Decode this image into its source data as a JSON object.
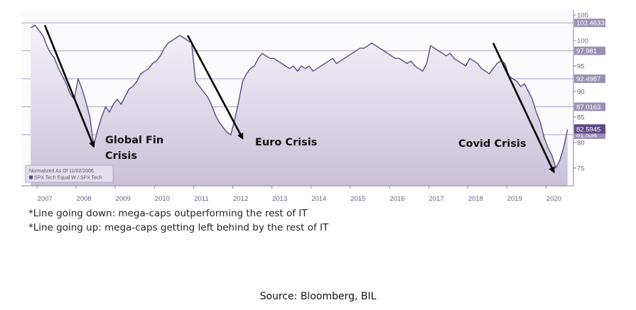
{
  "chart_data": {
    "type": "line",
    "series": [
      {
        "name": "SPX Tech Equal W / SPX Tech",
        "color": "#5b4a85",
        "x": [
          2006.84,
          2006.95,
          2007.05,
          2007.15,
          2007.25,
          2007.35,
          2007.45,
          2007.55,
          2007.65,
          2007.75,
          2007.85,
          2007.95,
          2008.05,
          2008.15,
          2008.25,
          2008.35,
          2008.45,
          2008.55,
          2008.65,
          2008.75,
          2008.85,
          2008.95,
          2009.05,
          2009.15,
          2009.25,
          2009.35,
          2009.45,
          2009.55,
          2009.65,
          2009.75,
          2009.85,
          2009.95,
          2010.05,
          2010.15,
          2010.25,
          2010.35,
          2010.45,
          2010.55,
          2010.65,
          2010.75,
          2010.85,
          2010.95,
          2011.05,
          2011.15,
          2011.25,
          2011.35,
          2011.45,
          2011.55,
          2011.65,
          2011.75,
          2011.85,
          2011.95,
          2012.05,
          2012.15,
          2012.25,
          2012.35,
          2012.45,
          2012.55,
          2012.65,
          2012.75,
          2012.85,
          2012.95,
          2013.05,
          2013.15,
          2013.25,
          2013.35,
          2013.45,
          2013.55,
          2013.65,
          2013.75,
          2013.85,
          2013.95,
          2014.05,
          2014.15,
          2014.25,
          2014.35,
          2014.45,
          2014.55,
          2014.65,
          2014.75,
          2014.85,
          2014.95,
          2015.05,
          2015.15,
          2015.25,
          2015.35,
          2015.45,
          2015.55,
          2015.65,
          2015.75,
          2015.85,
          2015.95,
          2016.05,
          2016.15,
          2016.25,
          2016.35,
          2016.45,
          2016.55,
          2016.65,
          2016.75,
          2016.85,
          2016.95,
          2017.05,
          2017.15,
          2017.25,
          2017.35,
          2017.45,
          2017.55,
          2017.65,
          2017.75,
          2017.85,
          2017.95,
          2018.05,
          2018.15,
          2018.25,
          2018.35,
          2018.45,
          2018.55,
          2018.65,
          2018.75,
          2018.85,
          2018.95,
          2019.05,
          2019.15,
          2019.25,
          2019.35,
          2019.45,
          2019.55,
          2019.65,
          2019.75,
          2019.85,
          2019.95,
          2020.05,
          2020.15,
          2020.25,
          2020.35,
          2020.45,
          2020.55
        ],
        "y": [
          102.5,
          103.0,
          102.0,
          101.0,
          99.0,
          97.5,
          96.5,
          94.5,
          93.0,
          91.5,
          89.5,
          88.5,
          92.5,
          90.5,
          88.0,
          85.0,
          79.5,
          82.5,
          85.0,
          87.0,
          86.0,
          87.5,
          88.5,
          87.5,
          89.0,
          90.5,
          91.0,
          92.0,
          93.5,
          94.0,
          94.5,
          95.5,
          96.0,
          97.0,
          98.5,
          99.5,
          100.0,
          100.5,
          101.0,
          100.5,
          100.0,
          99.5,
          92.0,
          91.0,
          90.0,
          89.0,
          87.5,
          85.5,
          84.0,
          83.0,
          82.0,
          81.5,
          84.5,
          88.0,
          92.0,
          93.5,
          94.5,
          95.0,
          96.5,
          97.5,
          97.0,
          96.5,
          96.5,
          96.0,
          95.5,
          95.0,
          94.5,
          95.0,
          94.0,
          95.0,
          94.5,
          95.0,
          94.0,
          94.5,
          95.0,
          95.5,
          96.0,
          96.5,
          95.5,
          96.0,
          96.5,
          97.0,
          97.5,
          98.0,
          98.5,
          98.5,
          99.0,
          99.5,
          99.0,
          98.5,
          98.0,
          97.5,
          97.0,
          96.5,
          96.5,
          96.0,
          95.5,
          96.0,
          95.0,
          94.5,
          94.0,
          95.5,
          99.0,
          98.5,
          98.0,
          97.5,
          97.0,
          97.5,
          96.5,
          96.0,
          95.5,
          95.0,
          96.5,
          96.0,
          95.5,
          94.5,
          94.0,
          93.5,
          94.5,
          95.5,
          96.0,
          95.5,
          93.0,
          92.5,
          92.0,
          91.0,
          91.5,
          90.0,
          88.5,
          86.0,
          84.0,
          81.0,
          79.0,
          77.5,
          75.0,
          76.5,
          79.0,
          82.6
        ]
      }
    ],
    "xlim": [
      2006.6,
      2020.7
    ],
    "ylim": [
      71.5,
      106
    ],
    "x_ticks": [
      2007,
      2008,
      2009,
      2010,
      2011,
      2012,
      2013,
      2014,
      2015,
      2016,
      2017,
      2018,
      2019,
      2020
    ],
    "x_tick_labels": [
      "2007",
      "2008",
      "2009",
      "2010",
      "2011",
      "2012",
      "2013",
      "2014",
      "2015",
      "2016",
      "2017",
      "2018",
      "2019",
      "2020"
    ],
    "y_ticks": [
      75,
      80,
      85,
      90,
      95,
      100,
      105
    ],
    "y_tick_labels": [
      "75",
      "80",
      "85",
      "90",
      "95",
      "100",
      "105"
    ],
    "reference_lines": [
      {
        "value": 103.4633,
        "label": "103.4633"
      },
      {
        "value": 97.981,
        "label": "97.981"
      },
      {
        "value": 92.4987,
        "label": "92.4987"
      },
      {
        "value": 87.0163,
        "label": "87.0163"
      },
      {
        "value": 81.534,
        "label": "81.534"
      }
    ],
    "last_value_label": "82.5945",
    "last_value": 82.5945,
    "legend": {
      "placement": "bottom-left",
      "title": "Normalized As Of 11/02/2006",
      "entry": "SPX Tech Equal W / SPX Tech"
    },
    "annotations": [
      {
        "text": "Global Fin Crisis",
        "lines": [
          "Global Fin",
          "Crisis"
        ],
        "arrow_from": [
          2007.2,
          103.0
        ],
        "arrow_to": [
          2008.45,
          79.2
        ]
      },
      {
        "text": "Euro Crisis",
        "lines": [
          "Euro Crisis"
        ],
        "arrow_from": [
          2010.85,
          101.0
        ],
        "arrow_to": [
          2012.25,
          80.8
        ]
      },
      {
        "text": "Covid Crisis",
        "lines": [
          "Covid Crisis"
        ],
        "arrow_from": [
          2018.65,
          99.5
        ],
        "arrow_to": [
          2020.2,
          74.2
        ]
      }
    ],
    "colors": {
      "line": "#5b4a85",
      "fill_top": "#f4f2f8",
      "fill_bottom": "#c9c0d8",
      "label_bg": "#9a90b4",
      "last_label_bg": "#5b4a85",
      "arrow": "#000000"
    },
    "grid": false
  },
  "footnotes": {
    "line1": "*Line going down: mega-caps outperforming the rest of IT",
    "line2": "*Line going up: mega-caps getting left behind by the rest of IT"
  },
  "source": "Source: Bloomberg, BIL"
}
